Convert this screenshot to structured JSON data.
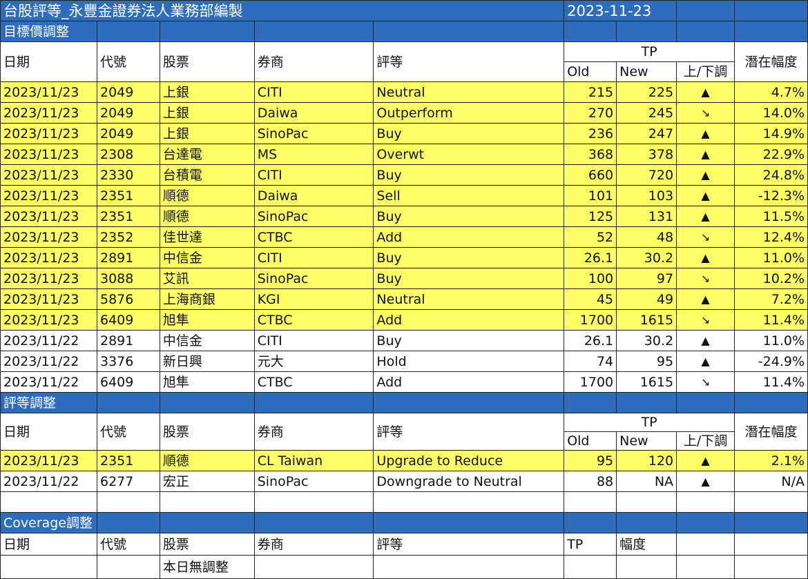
{
  "title": "台股評等_永豐金證券法人業務部編製",
  "date": "2023-11-23",
  "colors": {
    "header_blue": "#2e6cbc",
    "highlight_yellow": "#ffff66"
  },
  "headers": {
    "date": "日期",
    "code": "代號",
    "stock": "股票",
    "broker": "券商",
    "rating": "評等",
    "tp": "TP",
    "old": "Old",
    "new": "New",
    "direction": "上/下調",
    "upside": "潛在幅度",
    "magnitude": "幅度"
  },
  "sections": {
    "target": "目標價調整",
    "rating": "評等調整",
    "coverage": "Coverage調整"
  },
  "target_rows": [
    {
      "date": "2023/11/23",
      "code": "2049",
      "stock": "上銀",
      "broker": "CITI",
      "rating": "Neutral",
      "old": "215",
      "new": "225",
      "dir": "▲",
      "upside": "4.7%",
      "hl": true
    },
    {
      "date": "2023/11/23",
      "code": "2049",
      "stock": "上銀",
      "broker": "Daiwa",
      "rating": "Outperform",
      "old": "270",
      "new": "245",
      "dir": "↘",
      "upside": "14.0%",
      "hl": true
    },
    {
      "date": "2023/11/23",
      "code": "2049",
      "stock": "上銀",
      "broker": "SinoPac",
      "rating": "Buy",
      "old": "236",
      "new": "247",
      "dir": "▲",
      "upside": "14.9%",
      "hl": true
    },
    {
      "date": "2023/11/23",
      "code": "2308",
      "stock": "台達電",
      "broker": "MS",
      "rating": "Overwt",
      "old": "368",
      "new": "378",
      "dir": "▲",
      "upside": "22.9%",
      "hl": true
    },
    {
      "date": "2023/11/23",
      "code": "2330",
      "stock": "台積電",
      "broker": "CITI",
      "rating": "Buy",
      "old": "660",
      "new": "720",
      "dir": "▲",
      "upside": "24.8%",
      "hl": true
    },
    {
      "date": "2023/11/23",
      "code": "2351",
      "stock": "順德",
      "broker": "Daiwa",
      "rating": "Sell",
      "old": "101",
      "new": "103",
      "dir": "▲",
      "upside": "-12.3%",
      "hl": true
    },
    {
      "date": "2023/11/23",
      "code": "2351",
      "stock": "順德",
      "broker": "SinoPac",
      "rating": "Buy",
      "old": "125",
      "new": "131",
      "dir": "▲",
      "upside": "11.5%",
      "hl": true
    },
    {
      "date": "2023/11/23",
      "code": "2352",
      "stock": "佳世達",
      "broker": "CTBC",
      "rating": "Add",
      "old": "52",
      "new": "48",
      "dir": "↘",
      "upside": "12.4%",
      "hl": true
    },
    {
      "date": "2023/11/23",
      "code": "2891",
      "stock": "中信金",
      "broker": "CITI",
      "rating": "Buy",
      "old": "26.1",
      "new": "30.2",
      "dir": "▲",
      "upside": "11.0%",
      "hl": true
    },
    {
      "date": "2023/11/23",
      "code": "3088",
      "stock": "艾訊",
      "broker": "SinoPac",
      "rating": "Buy",
      "old": "100",
      "new": "97",
      "dir": "↘",
      "upside": "10.2%",
      "hl": true
    },
    {
      "date": "2023/11/23",
      "code": "5876",
      "stock": "上海商銀",
      "broker": "KGI",
      "rating": "Neutral",
      "old": "45",
      "new": "49",
      "dir": "▲",
      "upside": "7.2%",
      "hl": true
    },
    {
      "date": "2023/11/23",
      "code": "6409",
      "stock": "旭隼",
      "broker": "CTBC",
      "rating": "Add",
      "old": "1700",
      "new": "1615",
      "dir": "↘",
      "upside": "11.4%",
      "hl": true
    },
    {
      "date": "2023/11/22",
      "code": "2891",
      "stock": "中信金",
      "broker": "CITI",
      "rating": "Buy",
      "old": "26.1",
      "new": "30.2",
      "dir": "▲",
      "upside": "11.0%",
      "hl": false
    },
    {
      "date": "2023/11/22",
      "code": "3376",
      "stock": "新日興",
      "broker": "元大",
      "rating": "Hold",
      "old": "74",
      "new": "95",
      "dir": "▲",
      "upside": "-24.9%",
      "hl": false
    },
    {
      "date": "2023/11/22",
      "code": "6409",
      "stock": "旭隼",
      "broker": "CTBC",
      "rating": "Add",
      "old": "1700",
      "new": "1615",
      "dir": "↘",
      "upside": "11.4%",
      "hl": false
    }
  ],
  "rating_rows": [
    {
      "date": "2023/11/23",
      "code": "2351",
      "stock": "順德",
      "broker": "CL Taiwan",
      "rating": "Upgrade to Reduce",
      "old": "95",
      "new": "120",
      "dir": "▲",
      "upside": "2.1%",
      "hl": true
    },
    {
      "date": "2023/11/22",
      "code": "6277",
      "stock": "宏正",
      "broker": "SinoPac",
      "rating": "Downgrade to Neutral",
      "old": "88",
      "new": "NA",
      "dir": "▲",
      "upside": "N/A",
      "hl": false
    }
  ],
  "coverage_note": "本日無調整"
}
